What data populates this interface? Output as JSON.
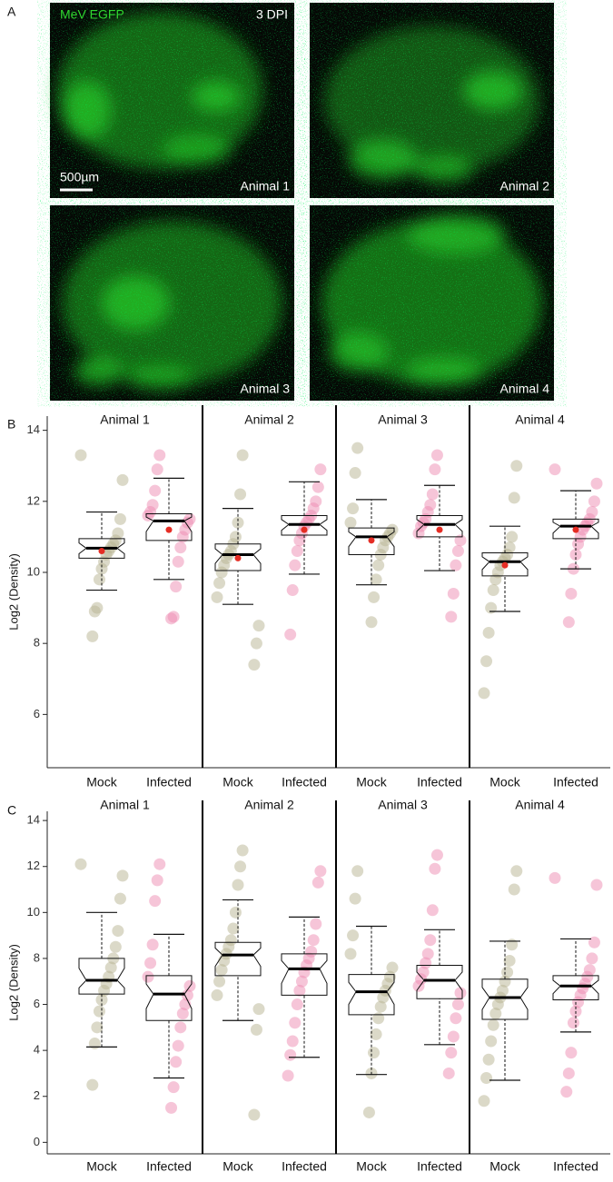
{
  "panel_a": {
    "label": "A",
    "stain": "MeV EGFP",
    "stain_color": "#2fd62f",
    "timepoint": "3 DPI",
    "scale_bar": "500µm",
    "images": [
      {
        "label": "Animal 1"
      },
      {
        "label": "Animal 2"
      },
      {
        "label": "Animal 3"
      },
      {
        "label": "Animal 4"
      }
    ]
  },
  "chart_data": [
    {
      "type": "box",
      "panel_label": "B",
      "y_label": "Log2 (Density)",
      "ylim": [
        4.5,
        14.4
      ],
      "yticks": [
        6,
        8,
        10,
        12,
        14
      ],
      "series": [
        {
          "name": "Mock",
          "color": "#b8b392"
        },
        {
          "name": "Infected",
          "color": "#ee8bb2"
        }
      ],
      "mean_color": "#e52d24",
      "groups": [
        {
          "name": "Animal 1",
          "boxes": [
            {
              "whisker_low": 9.5,
              "q1": 10.4,
              "median": 10.68,
              "q3": 10.95,
              "whisker_high": 11.7,
              "mean": 10.6,
              "points": [
                13.3,
                12.6,
                11.5,
                11.1,
                10.9,
                10.8,
                10.7,
                10.6,
                10.5,
                10.3,
                10.1,
                9.8,
                9.0,
                8.9,
                8.2
              ]
            },
            {
              "whisker_low": 9.8,
              "q1": 10.9,
              "median": 11.45,
              "q3": 11.65,
              "whisker_high": 12.65,
              "mean": 11.2,
              "points": [
                13.3,
                12.9,
                12.3,
                11.9,
                11.7,
                11.6,
                11.5,
                11.4,
                11.2,
                11.0,
                10.7,
                10.3,
                9.6,
                8.75,
                8.7
              ]
            }
          ]
        },
        {
          "name": "Animal 2",
          "boxes": [
            {
              "whisker_low": 9.1,
              "q1": 10.05,
              "median": 10.5,
              "q3": 10.8,
              "whisker_high": 11.8,
              "mean": 10.4,
              "points": [
                13.3,
                12.2,
                11.4,
                11.0,
                10.8,
                10.6,
                10.5,
                10.4,
                10.2,
                10.0,
                9.7,
                9.3,
                8.5,
                8.0,
                7.4
              ]
            },
            {
              "whisker_low": 9.95,
              "q1": 11.05,
              "median": 11.35,
              "q3": 11.6,
              "whisker_high": 12.55,
              "mean": 11.2,
              "points": [
                12.9,
                12.4,
                12.0,
                11.8,
                11.6,
                11.5,
                11.4,
                11.3,
                11.1,
                10.9,
                10.6,
                10.2,
                9.5,
                8.25
              ]
            }
          ]
        },
        {
          "name": "Animal 3",
          "boxes": [
            {
              "whisker_low": 9.65,
              "q1": 10.5,
              "median": 11.0,
              "q3": 11.25,
              "whisker_high": 12.05,
              "mean": 10.9,
              "points": [
                13.5,
                12.8,
                11.8,
                11.4,
                11.2,
                11.1,
                11.0,
                10.9,
                10.7,
                10.5,
                10.2,
                9.8,
                9.3,
                8.6
              ]
            },
            {
              "whisker_low": 10.05,
              "q1": 11.0,
              "median": 11.35,
              "q3": 11.6,
              "whisker_high": 12.45,
              "mean": 11.2,
              "points": [
                13.3,
                12.9,
                12.2,
                11.9,
                11.7,
                11.5,
                11.4,
                11.3,
                11.1,
                10.9,
                10.6,
                10.2,
                9.4,
                8.75
              ]
            }
          ]
        },
        {
          "name": "Animal 4",
          "boxes": [
            {
              "whisker_low": 8.9,
              "q1": 9.9,
              "median": 10.3,
              "q3": 10.55,
              "whisker_high": 11.3,
              "mean": 10.2,
              "points": [
                13.0,
                12.1,
                11.0,
                10.7,
                10.5,
                10.4,
                10.3,
                10.2,
                10.0,
                9.8,
                9.5,
                9.0,
                8.3,
                7.5,
                6.6
              ]
            },
            {
              "whisker_low": 10.1,
              "q1": 10.95,
              "median": 11.3,
              "q3": 11.5,
              "whisker_high": 12.3,
              "mean": 11.2,
              "points": [
                12.9,
                12.5,
                12.0,
                11.7,
                11.5,
                11.4,
                11.3,
                11.2,
                11.0,
                10.8,
                10.5,
                10.1,
                9.4,
                8.6
              ]
            }
          ]
        }
      ]
    },
    {
      "type": "box",
      "panel_label": "C",
      "y_label": "Log2 (Density)",
      "ylim": [
        -0.5,
        14.4
      ],
      "yticks": [
        0,
        2,
        4,
        6,
        8,
        10,
        12,
        14
      ],
      "series": [
        {
          "name": "Mock",
          "color": "#b8b392"
        },
        {
          "name": "Infected",
          "color": "#ee8bb2"
        }
      ],
      "groups": [
        {
          "name": "Animal 1",
          "boxes": [
            {
              "whisker_low": 4.15,
              "q1": 6.45,
              "median": 7.05,
              "q3": 8.0,
              "whisker_high": 10.0,
              "points": [
                12.1,
                11.6,
                10.6,
                9.2,
                8.5,
                8.0,
                7.6,
                7.2,
                6.9,
                6.6,
                6.2,
                5.7,
                5.0,
                4.3,
                2.5
              ]
            },
            {
              "whisker_low": 2.8,
              "q1": 5.3,
              "median": 6.45,
              "q3": 7.25,
              "whisker_high": 9.05,
              "points": [
                12.1,
                11.4,
                10.5,
                8.6,
                7.8,
                7.2,
                6.8,
                6.4,
                6.0,
                5.6,
                5.0,
                4.2,
                3.5,
                2.4,
                1.5
              ]
            }
          ]
        },
        {
          "name": "Animal 2",
          "boxes": [
            {
              "whisker_low": 5.3,
              "q1": 7.25,
              "median": 8.15,
              "q3": 8.7,
              "whisker_high": 10.55,
              "points": [
                12.7,
                12.0,
                11.2,
                10.0,
                9.3,
                8.8,
                8.5,
                8.2,
                7.9,
                7.5,
                7.0,
                6.4,
                5.8,
                4.9,
                1.2
              ]
            },
            {
              "whisker_low": 3.7,
              "q1": 6.4,
              "median": 7.55,
              "q3": 8.2,
              "whisker_high": 9.8,
              "points": [
                11.8,
                11.3,
                9.5,
                8.8,
                8.3,
                8.0,
                7.7,
                7.4,
                7.0,
                6.6,
                6.0,
                5.2,
                4.4,
                3.8,
                2.9
              ]
            }
          ]
        },
        {
          "name": "Animal 3",
          "boxes": [
            {
              "whisker_low": 2.95,
              "q1": 5.55,
              "median": 6.55,
              "q3": 7.3,
              "whisker_high": 9.4,
              "points": [
                11.8,
                10.6,
                9.0,
                8.2,
                7.6,
                7.2,
                6.9,
                6.6,
                6.3,
                5.9,
                5.4,
                4.7,
                3.9,
                3.0,
                1.3
              ]
            },
            {
              "whisker_low": 4.25,
              "q1": 6.25,
              "median": 7.05,
              "q3": 7.7,
              "whisker_high": 9.25,
              "points": [
                12.5,
                11.9,
                10.1,
                8.8,
                8.2,
                7.8,
                7.4,
                7.1,
                6.8,
                6.5,
                6.0,
                5.4,
                4.6,
                3.9,
                3.0
              ]
            }
          ]
        },
        {
          "name": "Animal 4",
          "boxes": [
            {
              "whisker_low": 2.7,
              "q1": 5.35,
              "median": 6.3,
              "q3": 7.1,
              "whisker_high": 8.75,
              "points": [
                11.8,
                11.0,
                8.6,
                7.9,
                7.4,
                7.0,
                6.6,
                6.3,
                6.0,
                5.6,
                5.1,
                4.4,
                3.6,
                2.8,
                1.8
              ]
            },
            {
              "whisker_low": 4.8,
              "q1": 6.2,
              "median": 6.8,
              "q3": 7.25,
              "whisker_high": 8.85,
              "points": [
                11.5,
                11.2,
                8.7,
                8.0,
                7.5,
                7.2,
                6.9,
                6.7,
                6.4,
                6.1,
                5.7,
                5.2,
                3.9,
                3.0,
                2.2
              ]
            }
          ]
        }
      ]
    }
  ]
}
